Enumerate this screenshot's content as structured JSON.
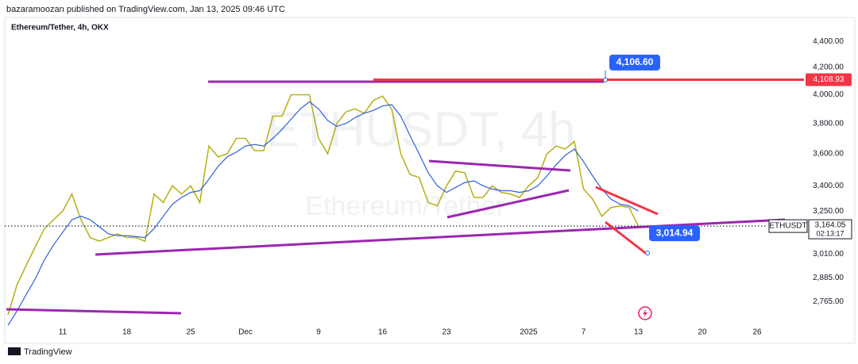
{
  "header": {
    "publisher": "bazaramoozan published on TradingView.com, Jan 13, 2025 09:46 UTC"
  },
  "chart_data": {
    "type": "line",
    "title": "Ethereum/Tether, 4h, OKX",
    "watermark": "ETHUSDT, 4h",
    "watermark_subtitle": "Ethereum/Tether",
    "categories": [
      null,
      null,
      null,
      null,
      null,
      null,
      "11",
      null,
      null,
      null,
      null,
      null,
      null,
      "18",
      null,
      null,
      null,
      null,
      null,
      null,
      "25",
      null,
      null,
      null,
      null,
      null,
      "Dec",
      null,
      null,
      null,
      null,
      null,
      null,
      null,
      "9",
      null,
      null,
      null,
      null,
      null,
      null,
      "16",
      null,
      null,
      null,
      null,
      null,
      null,
      "23",
      null,
      null,
      null,
      null,
      null,
      null,
      null,
      null,
      "2025",
      null,
      null,
      null,
      null,
      null,
      "7",
      null,
      null,
      null,
      null,
      null,
      "13",
      null,
      null,
      null,
      null,
      null,
      null,
      "20",
      null,
      null,
      null,
      null,
      null,
      "26",
      null,
      null,
      null
    ],
    "series": [
      {
        "color": "#b8b320",
        "values": [
          2700,
          2850,
          2950,
          3050,
          3150,
          3200,
          3250,
          3350,
          3200,
          3100,
          3080,
          3100,
          3120,
          3100,
          3100,
          3080,
          3350,
          3300,
          3400,
          3350,
          3400,
          3300,
          3650,
          3580,
          3600,
          3700,
          3700,
          3620,
          3620,
          3850,
          3850,
          4000,
          4000,
          4000,
          3700,
          3600,
          3800,
          3880,
          3900,
          3870,
          3960,
          3990,
          3900,
          3600,
          3470,
          3450,
          3300,
          3280,
          3400,
          3490,
          3480,
          3330,
          3330,
          3400,
          3360,
          3350,
          3330,
          3400,
          3450,
          3600,
          3650,
          3630,
          3680,
          3380,
          3320,
          3220,
          3270,
          3280,
          3270,
          3164.05,
          null,
          null,
          null,
          null,
          null,
          null,
          null,
          null,
          null,
          null,
          null,
          null,
          null,
          null,
          null,
          null
        ]
      },
      {
        "color": "#2f5fe0",
        "values": [
          2650,
          2720,
          2800,
          2880,
          2980,
          3060,
          3130,
          3200,
          3220,
          3200,
          3160,
          3120,
          3110,
          3110,
          3105,
          3100,
          3150,
          3220,
          3290,
          3330,
          3360,
          3370,
          3440,
          3520,
          3580,
          3610,
          3650,
          3660,
          3650,
          3700,
          3760,
          3830,
          3900,
          3950,
          3900,
          3820,
          3780,
          3800,
          3840,
          3870,
          3890,
          3920,
          3930,
          3850,
          3720,
          3600,
          3480,
          3400,
          3360,
          3390,
          3420,
          3430,
          3400,
          3380,
          3370,
          3370,
          3360,
          3370,
          3400,
          3460,
          3530,
          3590,
          3630,
          3550,
          3460,
          3380,
          3320,
          3290,
          3280,
          3250,
          null,
          null,
          null,
          null,
          null,
          null,
          null,
          null,
          null,
          null,
          null,
          null,
          null,
          null,
          null,
          null
        ]
      }
    ],
    "ylim": [
      2670,
      4540
    ],
    "log": true,
    "grid": false,
    "yticks": [
      {
        "value": 2765,
        "label": "2,765.00"
      },
      {
        "value": 2885,
        "label": "2,885.00"
      },
      {
        "value": 3010,
        "label": "3,010.00"
      },
      {
        "value": 3250,
        "label": "3,250.00"
      },
      {
        "value": 3400,
        "label": "3,400.00"
      },
      {
        "value": 3600,
        "label": "3,600.00"
      },
      {
        "value": 3800,
        "label": "3,800.00"
      },
      {
        "value": 4000,
        "label": "4,000.00"
      },
      {
        "value": 4200,
        "label": "4,200.00"
      },
      {
        "value": 4400,
        "label": "4,400.00"
      }
    ],
    "annotations": [
      {
        "value": 4106.6,
        "label": "4,106.60",
        "color": "#2962ff"
      },
      {
        "value": 3014.94,
        "label": "3,014.94",
        "color": "#2962ff"
      }
    ],
    "resistance": {
      "value": 4108.93,
      "label": "4,108.93",
      "color": "#f23645"
    },
    "last_price": {
      "value": 3164.05,
      "label": "3,164.05",
      "symbol": "ETHUSDT",
      "countdown": "02:13:17"
    }
  },
  "footer": {
    "brand": "TradingView"
  }
}
